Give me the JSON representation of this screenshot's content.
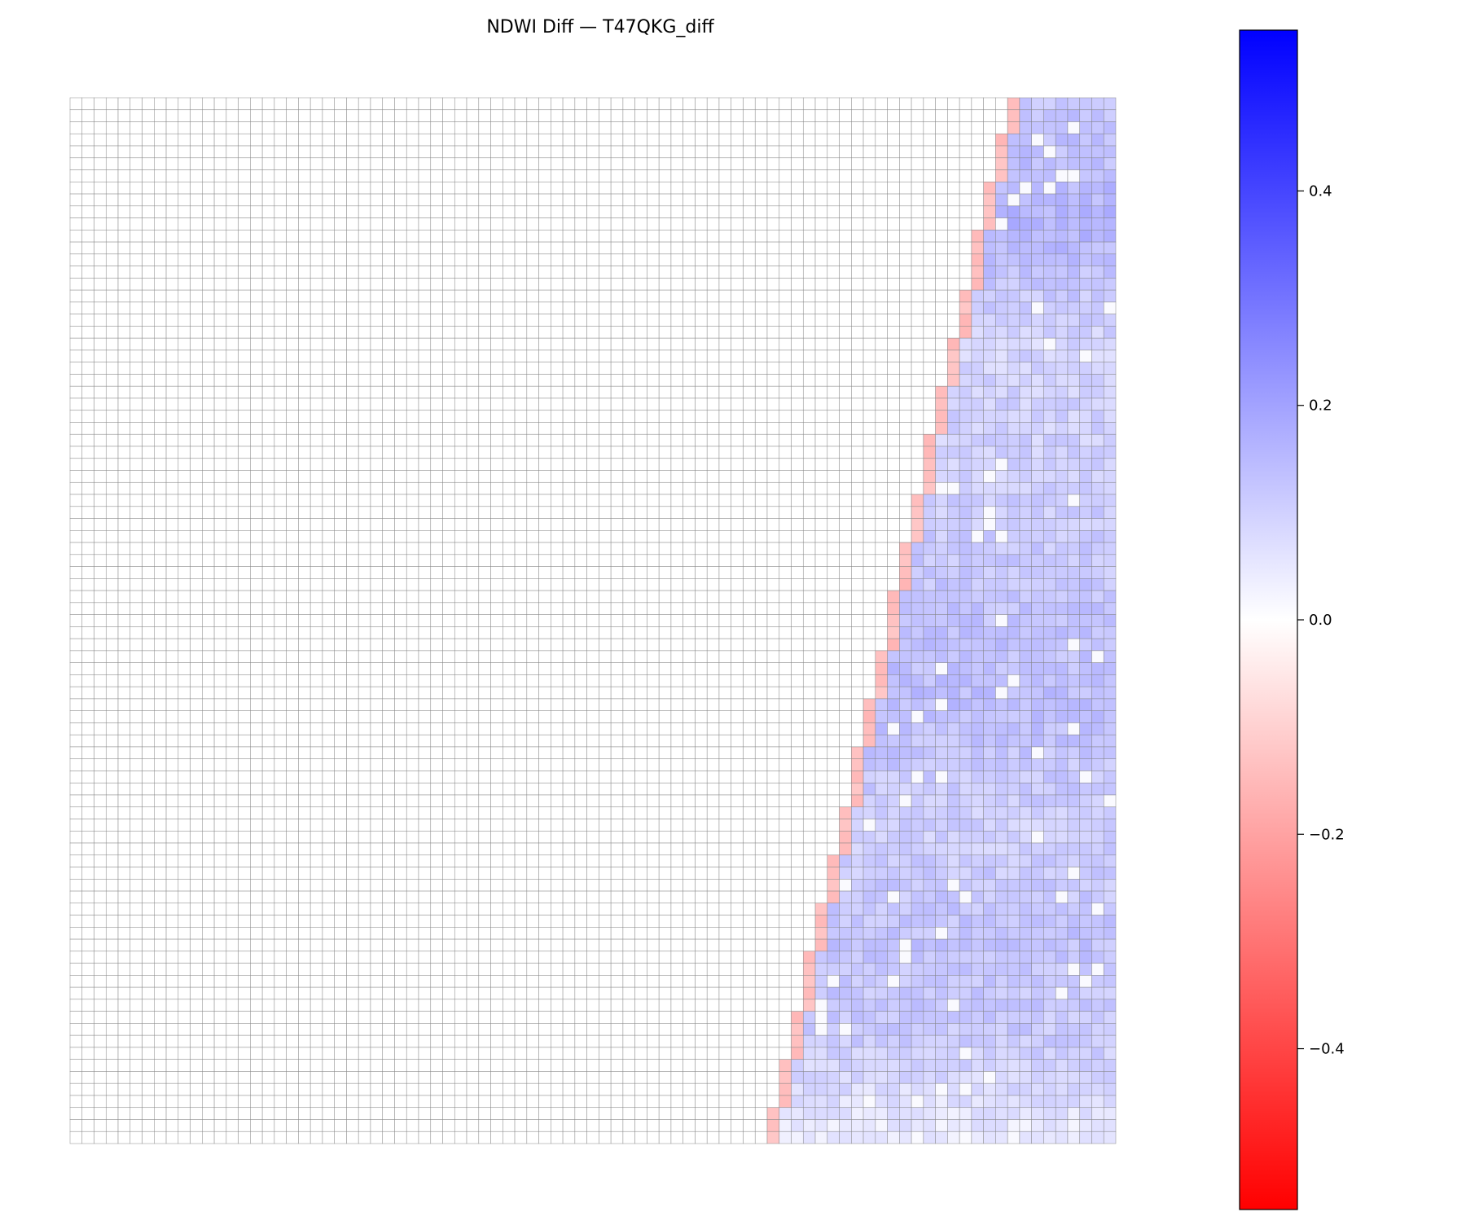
{
  "chart_data": {
    "type": "heatmap",
    "title": "NDWI Diff — T47QKG_diff",
    "colormap": "bwr",
    "colors": {
      "min": "#ff0000",
      "mid": "#ffffff",
      "max": "#0000ff",
      "grid": "#808080"
    },
    "grid": true,
    "colorbar": {
      "vmin": -0.55,
      "vmax": 0.55,
      "ticks": [
        0.4,
        0.2,
        0.0,
        -0.2,
        -0.4
      ],
      "tick_labels": [
        "0.4",
        "0.2",
        "0.0",
        "−0.2",
        "−0.4"
      ],
      "placement": "right"
    },
    "n_cols": 87,
    "n_rows": 87,
    "boundary_col_top": 78,
    "boundary_col_bottom": 58,
    "edge_value": -0.12,
    "water_value_range": [
      0.02,
      0.21
    ],
    "water_rows_sampled": [
      {
        "row": 0,
        "value": 0.12
      },
      {
        "row": 10,
        "value": 0.16
      },
      {
        "row": 20,
        "value": 0.09
      },
      {
        "row": 30,
        "value": 0.1
      },
      {
        "row": 40,
        "value": 0.12
      },
      {
        "row": 50,
        "value": 0.14
      },
      {
        "row": 60,
        "value": 0.1
      },
      {
        "row": 70,
        "value": 0.13
      },
      {
        "row": 78,
        "value": 0.11
      },
      {
        "row": 86,
        "value": 0.04
      }
    ]
  }
}
